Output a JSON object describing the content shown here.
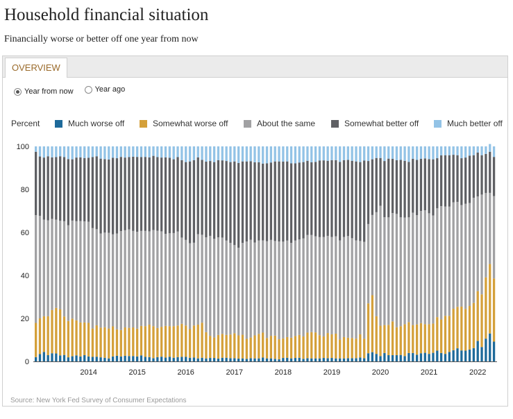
{
  "title": "Household financial situation",
  "subtitle": "Financially worse or better off one year from now",
  "tabs": [
    {
      "label": "OVERVIEW"
    }
  ],
  "radio_options": [
    {
      "label": "Year from now",
      "selected": true
    },
    {
      "label": "Year ago",
      "selected": false
    }
  ],
  "legend_prefix": "Percent",
  "source": "Source: New York Fed Survey of Consumer Expectations",
  "chart_data": {
    "type": "bar",
    "stacked": true,
    "title": "",
    "xlabel": "",
    "ylabel": "Percent",
    "ylim": [
      0,
      100
    ],
    "yticks": [
      0,
      20,
      40,
      60,
      80,
      100
    ],
    "xtick_labels": [
      "2014",
      "2015",
      "2016",
      "2017",
      "2018",
      "2019",
      "2020",
      "2021",
      "2022"
    ],
    "x_start": "2013-06",
    "x_end": "2022-08",
    "legend_position": "top",
    "grid": false,
    "series": [
      {
        "name": "Much worse off",
        "color": "#1e6a9a",
        "values": [
          2.0,
          3.4,
          4.4,
          2.9,
          3.8,
          3.7,
          2.8,
          3.0,
          1.9,
          2.4,
          2.8,
          2.3,
          2.9,
          2.3,
          2.1,
          2.2,
          1.9,
          1.7,
          1.4,
          2.3,
          2.6,
          2.3,
          2.6,
          2.5,
          2.5,
          2.3,
          2.8,
          2.1,
          2.0,
          1.5,
          2.0,
          2.2,
          1.8,
          2.1,
          1.7,
          2.0,
          2.1,
          2.1,
          1.7,
          1.8,
          1.4,
          1.7,
          1.4,
          1.6,
          1.6,
          1.3,
          1.7,
          1.7,
          1.5,
          1.5,
          1.3,
          1.4,
          1.2,
          1.5,
          1.4,
          1.4,
          1.8,
          1.4,
          1.4,
          1.2,
          1.0,
          1.6,
          1.7,
          1.4,
          1.6,
          1.7,
          1.2,
          1.5,
          1.4,
          1.4,
          1.4,
          1.6,
          1.5,
          1.6,
          1.4,
          1.4,
          1.4,
          1.5,
          1.5,
          1.5,
          1.8,
          1.5,
          3.8,
          4.3,
          3.5,
          2.5,
          3.9,
          2.9,
          2.9,
          2.9,
          3.0,
          2.5,
          3.9,
          3.9,
          3.1,
          3.8,
          4.0,
          3.5,
          4.0,
          5.0,
          3.9,
          3.5,
          4.4,
          5.2,
          6.1,
          5.1,
          5.0,
          5.5,
          6.2,
          9.5,
          6.7,
          10.6,
          13.0,
          9.2
        ]
      },
      {
        "name": "Somewhat worse off",
        "color": "#d4a03a",
        "values": [
          15.9,
          16.6,
          16.6,
          18.1,
          20.1,
          21.2,
          21.4,
          17.9,
          16.9,
          17.5,
          16.3,
          15.8,
          15.2,
          15.6,
          13.2,
          14.6,
          13.8,
          14.2,
          13.9,
          14.0,
          12.3,
          12.3,
          13.2,
          13.1,
          13.3,
          12.9,
          13.7,
          14.3,
          15.1,
          14.9,
          13.5,
          13.9,
          14.7,
          14.3,
          14.7,
          14.7,
          15.4,
          14.6,
          13.3,
          14.9,
          15.7,
          16.3,
          12.2,
          10.3,
          9.5,
          11.0,
          11.1,
          10.6,
          11.0,
          11.6,
          10.8,
          11.0,
          9.3,
          9.6,
          10.7,
          11.4,
          11.6,
          9.5,
          10.5,
          10.8,
          9.3,
          9.1,
          9.6,
          9.6,
          10.2,
          10.6,
          10.4,
          11.9,
          12.2,
          12.1,
          10.8,
          10.0,
          11.7,
          11.0,
          11.5,
          8.8,
          9.9,
          9.5,
          9.4,
          9.1,
          10.8,
          9.1,
          23.2,
          26.5,
          17.5,
          14.1,
          13.0,
          14.1,
          15.7,
          13.0,
          13.4,
          14.8,
          14.4,
          13.0,
          14.1,
          14.0,
          13.3,
          13.8,
          13.6,
          15.6,
          15.6,
          17.7,
          16.8,
          19.3,
          19.3,
          20.4,
          19.4,
          20.3,
          21.0,
          23.2,
          24.5,
          28.5,
          32.3,
          29.4
        ]
      },
      {
        "name": "About the same",
        "color": "#a1a1a3",
        "values": [
          50.1,
          47.7,
          44.9,
          44.6,
          42.4,
          41.0,
          41.2,
          44.3,
          44.5,
          45.6,
          46.1,
          47.2,
          47.0,
          47.1,
          46.7,
          44.7,
          43.8,
          44.0,
          44.5,
          42.8,
          44.6,
          46.0,
          45.2,
          45.8,
          44.9,
          45.1,
          44.2,
          44.3,
          43.4,
          44.7,
          45.3,
          44.4,
          42.8,
          43.2,
          43.3,
          43.7,
          40.1,
          39.8,
          40.0,
          38.5,
          42.1,
          40.9,
          44.1,
          46.5,
          45.9,
          45.4,
          44.8,
          43.9,
          42.6,
          41.0,
          40.8,
          42.7,
          45.3,
          45.5,
          43.2,
          43.4,
          42.9,
          45.0,
          44.6,
          44.0,
          45.5,
          45.0,
          44.9,
          44.1,
          44.4,
          44.4,
          45.6,
          45.4,
          45.2,
          44.7,
          45.6,
          46.3,
          45.2,
          45.3,
          45.3,
          46.1,
          46.6,
          47.3,
          46.4,
          45.7,
          43.4,
          45.0,
          36.9,
          37.3,
          48.4,
          55.8,
          50.2,
          50.0,
          50.4,
          52.7,
          50.6,
          49.6,
          48.7,
          52.3,
          50.8,
          52.2,
          53.0,
          51.6,
          50.3,
          50.6,
          52.7,
          50.8,
          50.8,
          49.5,
          48.8,
          47.2,
          48.9,
          47.9,
          48.9,
          44.0,
          46.4,
          39.2,
          33.1,
          38.3
        ]
      },
      {
        "name": "Somewhat better off",
        "color": "#5f6064",
        "values": [
          29.5,
          27.6,
          28.9,
          29.8,
          28.6,
          29.1,
          30.0,
          29.8,
          30.8,
          28.5,
          29.6,
          29.6,
          29.5,
          29.7,
          33.0,
          33.9,
          34.8,
          34.2,
          34.1,
          35.6,
          35.0,
          34.5,
          33.8,
          33.6,
          34.5,
          34.8,
          34.3,
          34.4,
          34.4,
          34.5,
          34.2,
          34.3,
          35.6,
          35.1,
          34.3,
          34.6,
          36.0,
          36.2,
          38.0,
          38.4,
          35.7,
          34.8,
          35.2,
          34.8,
          35.7,
          35.9,
          35.9,
          37.0,
          37.6,
          38.9,
          39.4,
          37.9,
          37.2,
          36.5,
          37.3,
          36.4,
          35.7,
          36.2,
          36.0,
          37.0,
          37.2,
          37.2,
          36.8,
          37.0,
          35.9,
          35.8,
          35.5,
          34.5,
          33.8,
          34.6,
          35.6,
          35.6,
          34.9,
          35.7,
          35.4,
          36.5,
          35.7,
          35.4,
          36.0,
          36.7,
          36.7,
          37.8,
          29.3,
          25.9,
          25.2,
          22.2,
          26.1,
          27.3,
          25.2,
          25.0,
          26.7,
          26.4,
          25.8,
          25.0,
          25.7,
          24.2,
          24.1,
          25.2,
          26.1,
          23.3,
          23.6,
          23.9,
          23.9,
          22.1,
          21.7,
          21.8,
          21.5,
          22.0,
          19.8,
          20.4,
          18.3,
          18.2,
          19.1,
          18.2
        ]
      },
      {
        "name": "Much better off",
        "color": "#93c3e6",
        "values": [
          2.5,
          4.7,
          5.2,
          4.6,
          5.1,
          5.0,
          4.6,
          5.0,
          5.9,
          6.0,
          5.2,
          5.1,
          5.4,
          5.3,
          5.0,
          4.6,
          5.7,
          5.9,
          6.1,
          5.3,
          5.5,
          4.9,
          5.2,
          5.0,
          4.8,
          4.9,
          5.0,
          4.9,
          5.1,
          4.4,
          5.0,
          5.2,
          5.1,
          5.3,
          6.0,
          5.0,
          6.4,
          7.3,
          7.0,
          6.4,
          5.1,
          6.3,
          7.1,
          6.8,
          7.3,
          6.4,
          6.5,
          6.8,
          7.3,
          7.0,
          7.7,
          7.0,
          7.0,
          6.9,
          7.4,
          7.4,
          8.0,
          7.9,
          7.5,
          7.0,
          7.0,
          7.1,
          7.0,
          7.9,
          7.9,
          7.5,
          7.3,
          6.7,
          7.4,
          7.2,
          6.6,
          6.5,
          6.7,
          6.4,
          6.4,
          7.2,
          6.4,
          6.3,
          6.7,
          7.0,
          7.3,
          6.6,
          6.8,
          6.0,
          5.4,
          5.4,
          6.8,
          5.7,
          5.8,
          6.4,
          6.3,
          6.7,
          7.2,
          5.8,
          6.3,
          5.8,
          5.6,
          5.9,
          6.0,
          5.5,
          4.2,
          4.1,
          4.1,
          3.9,
          4.1,
          5.5,
          5.2,
          4.3,
          4.1,
          2.9,
          4.1,
          3.5,
          3.6,
          4.9
        ]
      }
    ]
  }
}
